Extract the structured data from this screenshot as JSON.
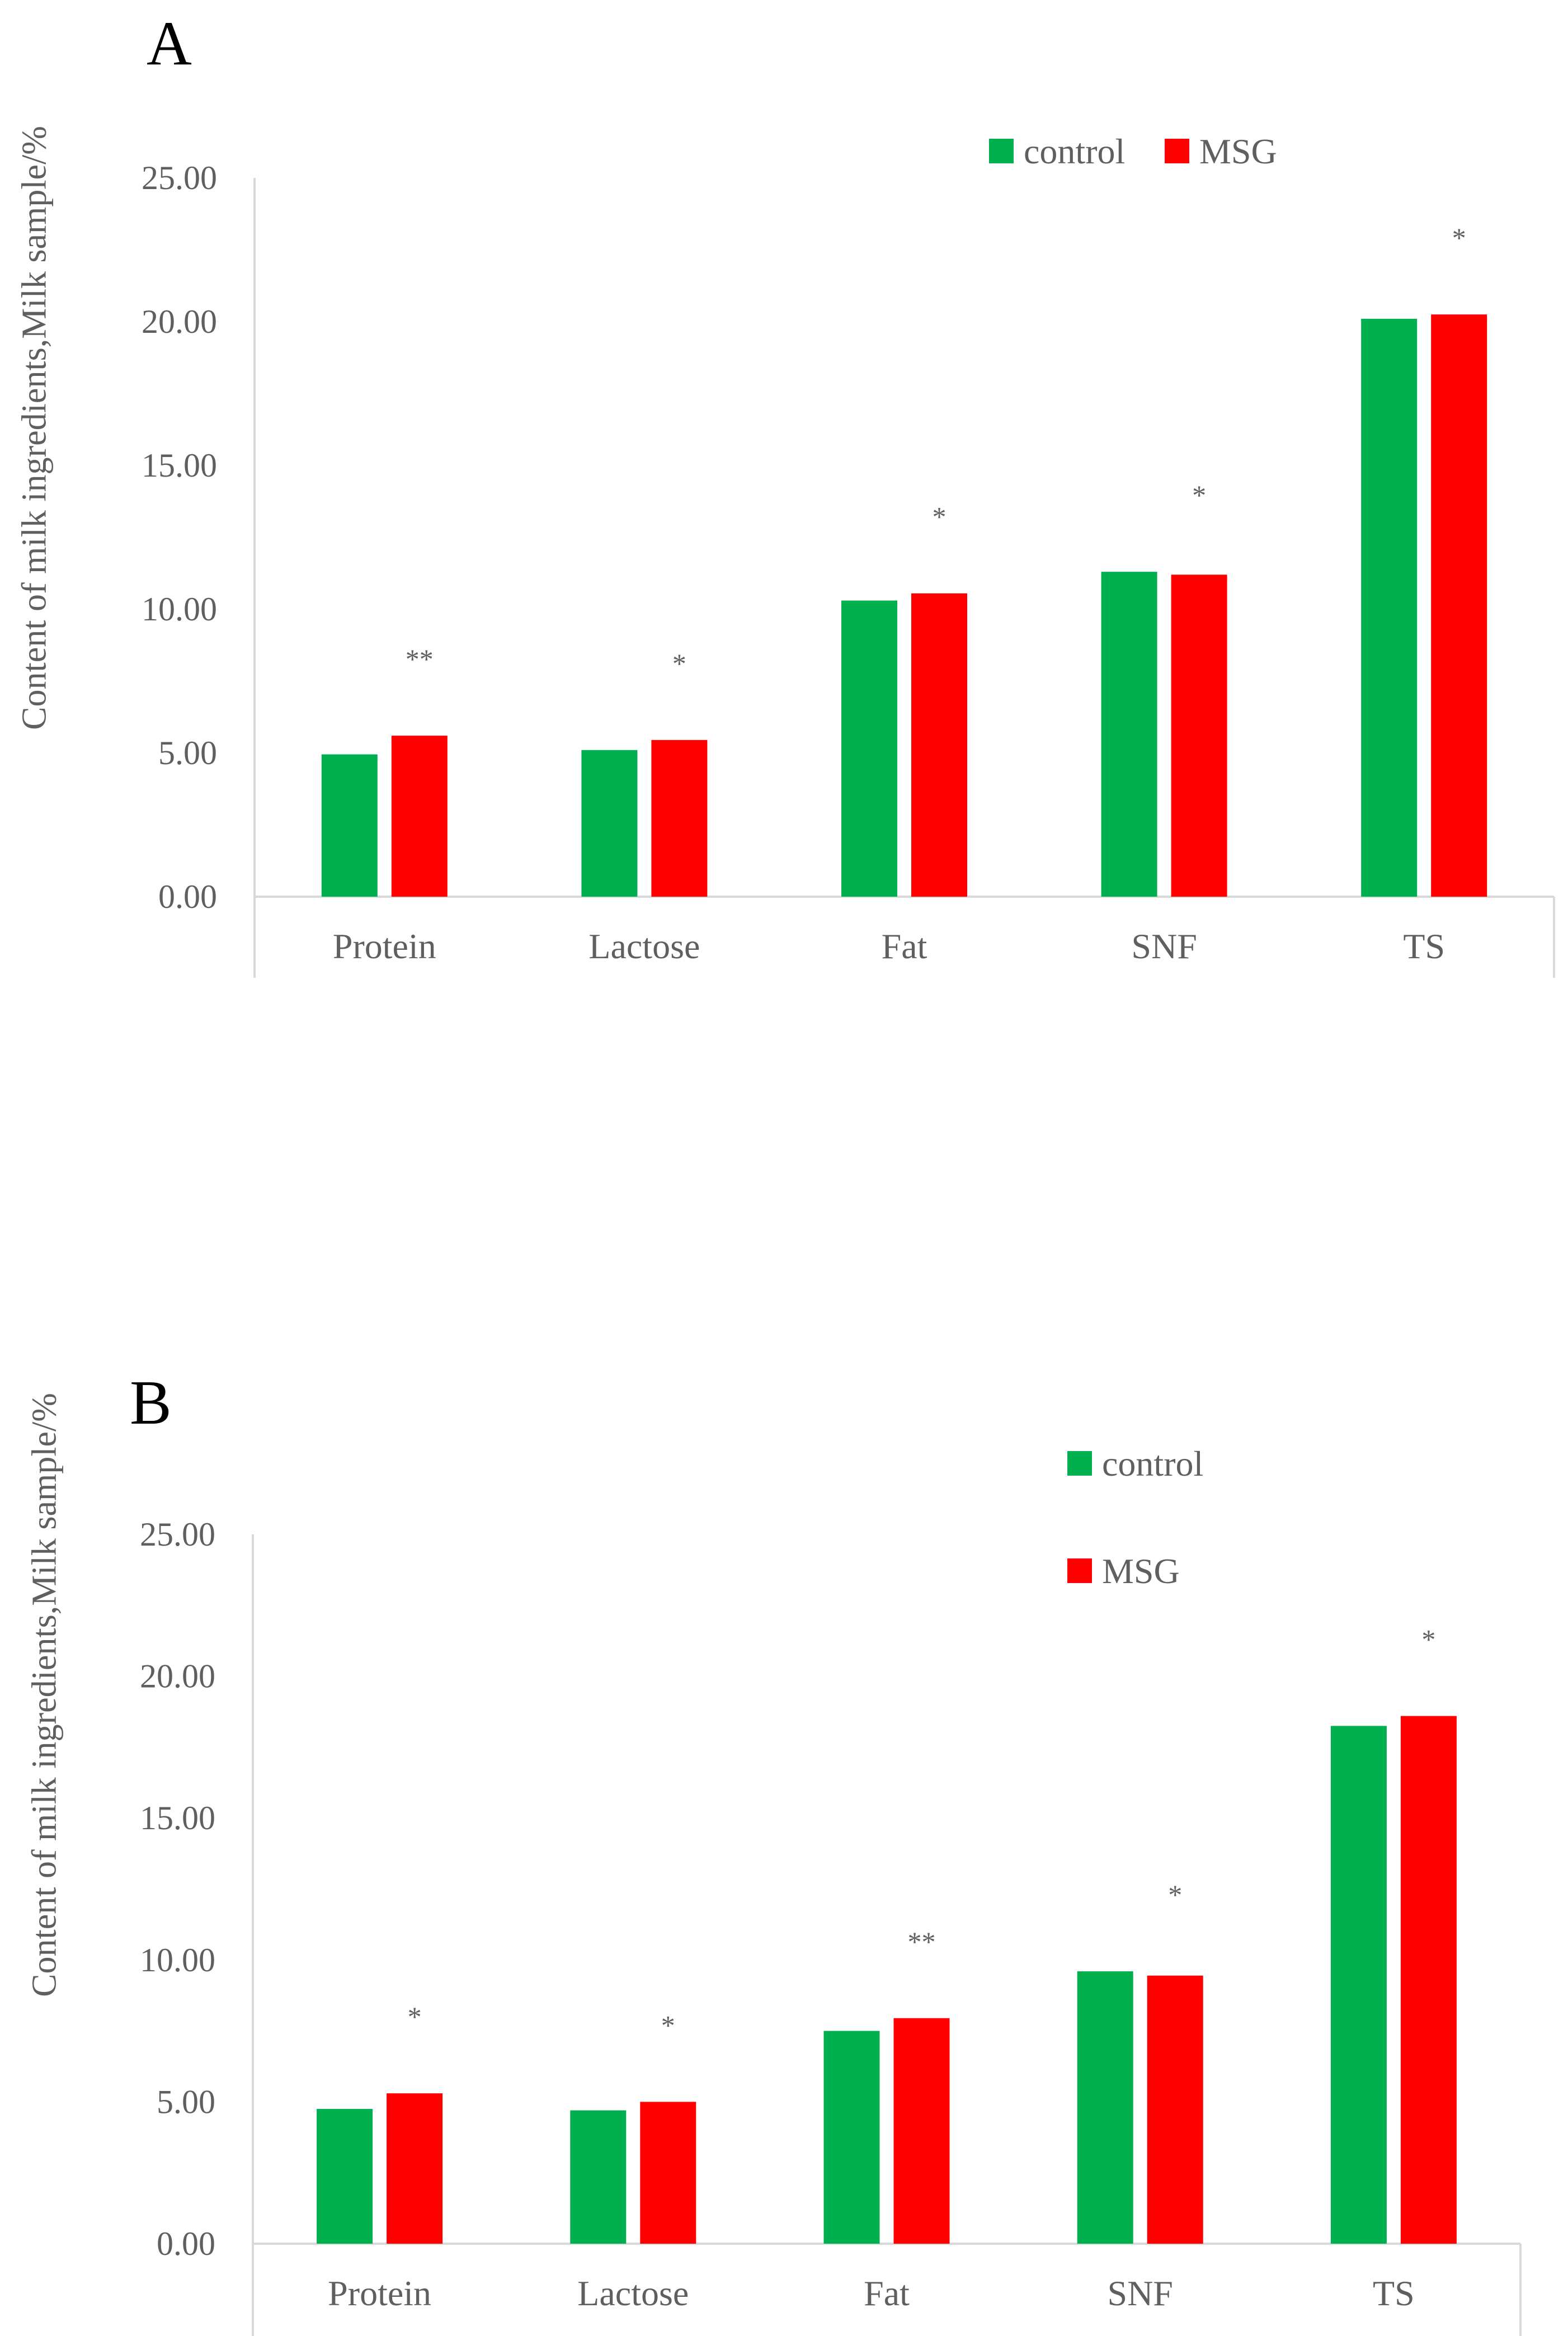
{
  "colors": {
    "control": "#00b04f",
    "msg": "#ff0000",
    "axis": "#d9d9d9",
    "text": "#5f5f5f"
  },
  "chart_data": [
    {
      "panel_label": "A",
      "type": "bar",
      "categories": [
        "Protein",
        "Lactose",
        "Fat",
        "SNF",
        "TS"
      ],
      "series": [
        {
          "name": "control",
          "values": [
            4.95,
            5.1,
            10.3,
            11.3,
            20.1
          ]
        },
        {
          "name": "MSG",
          "values": [
            5.6,
            5.45,
            10.55,
            11.2,
            20.25
          ]
        }
      ],
      "significance": [
        "**",
        "*",
        "*",
        "*",
        "*"
      ],
      "ylabel": "Content of milk ingredients,Milk sample/%",
      "xlabel": "",
      "yticks": [
        "0.00",
        "5.00",
        "10.00",
        "15.00",
        "20.00",
        "25.00"
      ],
      "ylim": [
        0,
        25
      ],
      "legend": "top-right",
      "grid": false
    },
    {
      "panel_label": "B",
      "type": "bar",
      "categories": [
        "Protein",
        "Lactose",
        "Fat",
        "SNF",
        "TS"
      ],
      "series": [
        {
          "name": "control",
          "values": [
            4.75,
            4.7,
            7.5,
            9.6,
            18.25
          ]
        },
        {
          "name": "MSG",
          "values": [
            5.3,
            5.0,
            7.95,
            9.45,
            18.6
          ]
        }
      ],
      "significance": [
        "*",
        "*",
        "**",
        "*",
        "*"
      ],
      "ylabel": "Content of milk ingredients,Milk sample/%",
      "xlabel": "",
      "yticks": [
        "0.00",
        "5.00",
        "10.00",
        "15.00",
        "20.00",
        "25.00"
      ],
      "ylim": [
        0,
        25
      ],
      "legend": "top-right",
      "grid": false
    }
  ]
}
